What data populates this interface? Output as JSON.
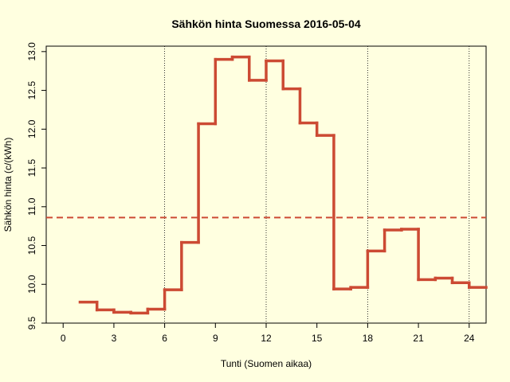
{
  "chart_data": {
    "type": "step",
    "title": "Sähkön hinta Suomessa 2016-05-04",
    "xlabel": "Tunti (Suomen aikaa)",
    "ylabel": "Sähkön hinta (c/(kWh)",
    "x": [
      1,
      2,
      3,
      4,
      5,
      6,
      7,
      8,
      9,
      10,
      11,
      12,
      13,
      14,
      15,
      16,
      17,
      18,
      19,
      20,
      21,
      22,
      23,
      24
    ],
    "values": [
      9.77,
      9.67,
      9.64,
      9.63,
      9.68,
      9.93,
      10.54,
      12.07,
      12.9,
      12.93,
      12.63,
      12.88,
      12.52,
      12.08,
      11.92,
      9.94,
      9.96,
      10.43,
      10.7,
      10.71,
      10.06,
      10.08,
      10.02,
      9.96
    ],
    "color": "#cc4a33",
    "mean_line": 10.86,
    "xlim": [
      -1,
      25
    ],
    "ylim": [
      9.5,
      13.07
    ],
    "xticks": [
      0,
      3,
      6,
      9,
      12,
      15,
      18,
      21,
      24
    ],
    "yticks": [
      {
        "value": 9.5,
        "label": "9.5"
      },
      {
        "value": 10,
        "label": "10.0"
      },
      {
        "value": 10.5,
        "label": "10.5"
      },
      {
        "value": 11,
        "label": "11.0"
      },
      {
        "value": 11.5,
        "label": "11.5"
      },
      {
        "value": 12,
        "label": "12.0"
      },
      {
        "value": 12.5,
        "label": "12.5"
      },
      {
        "value": 13,
        "label": "13.0"
      }
    ],
    "vgrid": [
      6,
      12,
      18,
      24
    ]
  }
}
